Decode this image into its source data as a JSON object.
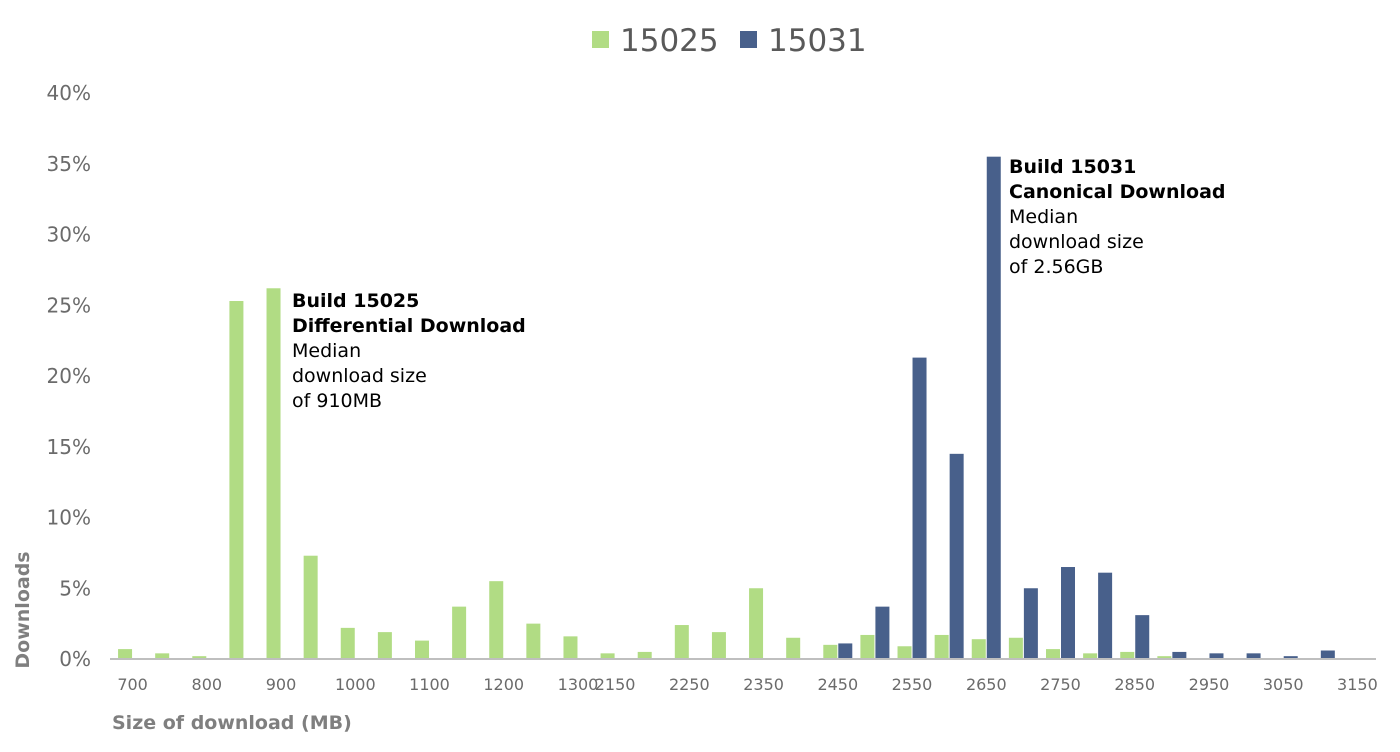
{
  "chart_data": {
    "type": "bar",
    "title": "",
    "xlabel": "Size of download (MB)",
    "ylabel": "Downloads",
    "ylim": [
      0,
      0.4
    ],
    "yticks": [
      "0%",
      "5%",
      "10%",
      "15%",
      "20%",
      "25%",
      "30%",
      "35%",
      "40%"
    ],
    "grid": false,
    "legend_position": "top-center",
    "categories": [
      "700",
      "750",
      "800",
      "850",
      "900",
      "950",
      "1000",
      "1050",
      "1100",
      "1150",
      "1200",
      "1250",
      "1300",
      "2150",
      "2200",
      "2250",
      "2300",
      "2350",
      "2400",
      "2450",
      "2500",
      "2550",
      "2600",
      "2650",
      "2700",
      "2750",
      "2800",
      "2850",
      "2900",
      "2950",
      "3000",
      "3050",
      "3100",
      "3150"
    ],
    "x_tick_labels": [
      "700",
      "",
      "800",
      "",
      "900",
      "",
      "1000",
      "",
      "1100",
      "",
      "1200",
      "",
      "1300",
      "2150",
      "",
      "2250",
      "",
      "2350",
      "",
      "2450",
      "",
      "2550",
      "",
      "2650",
      "",
      "2750",
      "",
      "2850",
      "",
      "2950",
      "",
      "3050",
      "",
      "3150"
    ],
    "series": [
      {
        "name": "15025",
        "color": "#b1dc84",
        "values": [
          0.007,
          0.004,
          0.002,
          0.253,
          0.262,
          0.073,
          0.022,
          0.019,
          0.013,
          0.037,
          0.055,
          0.025,
          0.016,
          0.004,
          0.005,
          0.024,
          0.019,
          0.05,
          0.015,
          0.01,
          0.017,
          0.009,
          0.017,
          0.014,
          0.015,
          0.007,
          0.004,
          0.005,
          0.002,
          0,
          0,
          0,
          0,
          0
        ]
      },
      {
        "name": "15031",
        "color": "#48608b",
        "values": [
          0,
          0,
          0,
          0,
          0,
          0,
          0,
          0,
          0,
          0,
          0,
          0,
          0,
          0,
          0,
          0,
          0,
          0,
          0,
          0.011,
          0.037,
          0.213,
          0.145,
          0.355,
          0.05,
          0.065,
          0.061,
          0.031,
          0.005,
          0.004,
          0.004,
          0.002,
          0.006,
          0
        ]
      }
    ],
    "annotations": [
      {
        "title_lines": [
          "Build 15025",
          "Differential Download"
        ],
        "body_lines": [
          "Median",
          "download size",
          "of 910MB"
        ]
      },
      {
        "title_lines": [
          "Build 15031",
          "Canonical Download"
        ],
        "body_lines": [
          "Median",
          "download size",
          "of 2.56GB"
        ]
      }
    ],
    "axis_color": "#bfbfbf"
  }
}
